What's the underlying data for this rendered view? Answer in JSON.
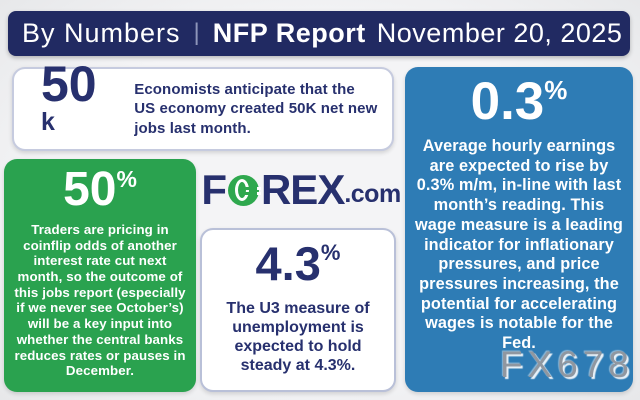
{
  "colors": {
    "bg": "#eff0f2",
    "navy": "#27306e",
    "header_bg": "#212a62",
    "green": "#2aa24f",
    "green_logo": "#2fa84e",
    "blue": "#2e7cb5",
    "card_border": "#c6cbdf",
    "watermark": "#9097a0"
  },
  "header": {
    "kicker": "By Numbers",
    "separator": "|",
    "title": "NFP Report",
    "date": "November 20, 2025"
  },
  "cards": {
    "jobs": {
      "value": "50",
      "suffix": "k",
      "text": "Economists anticipate that the US economy created 50K net new jobs last month."
    },
    "rate_cut": {
      "value": "50",
      "suffix": "%",
      "text": "Traders are pricing in coinflip odds of another interest rate cut next month, so the outcome of this jobs report (especially if we never see October’s) will be a key input into whether the central banks reduces rates or pauses in December."
    },
    "unemployment": {
      "value": "4.3",
      "suffix": "%",
      "text": "The U3 measure of unemployment is expected to hold steady at 4.3%."
    },
    "earnings": {
      "value": "0.3",
      "suffix": "%",
      "text": "Average hourly earnings are expected to rise by 0.3% m/m, in-line with last month’s reading. This wage measure is a leading indicator for inflationary pressures, and price pressures increasing, the potential for accelerating wages is notable for the Fed."
    }
  },
  "logo": {
    "part1": "F",
    "part2": "REX",
    "suffix": ".com"
  },
  "watermark": "FX678"
}
